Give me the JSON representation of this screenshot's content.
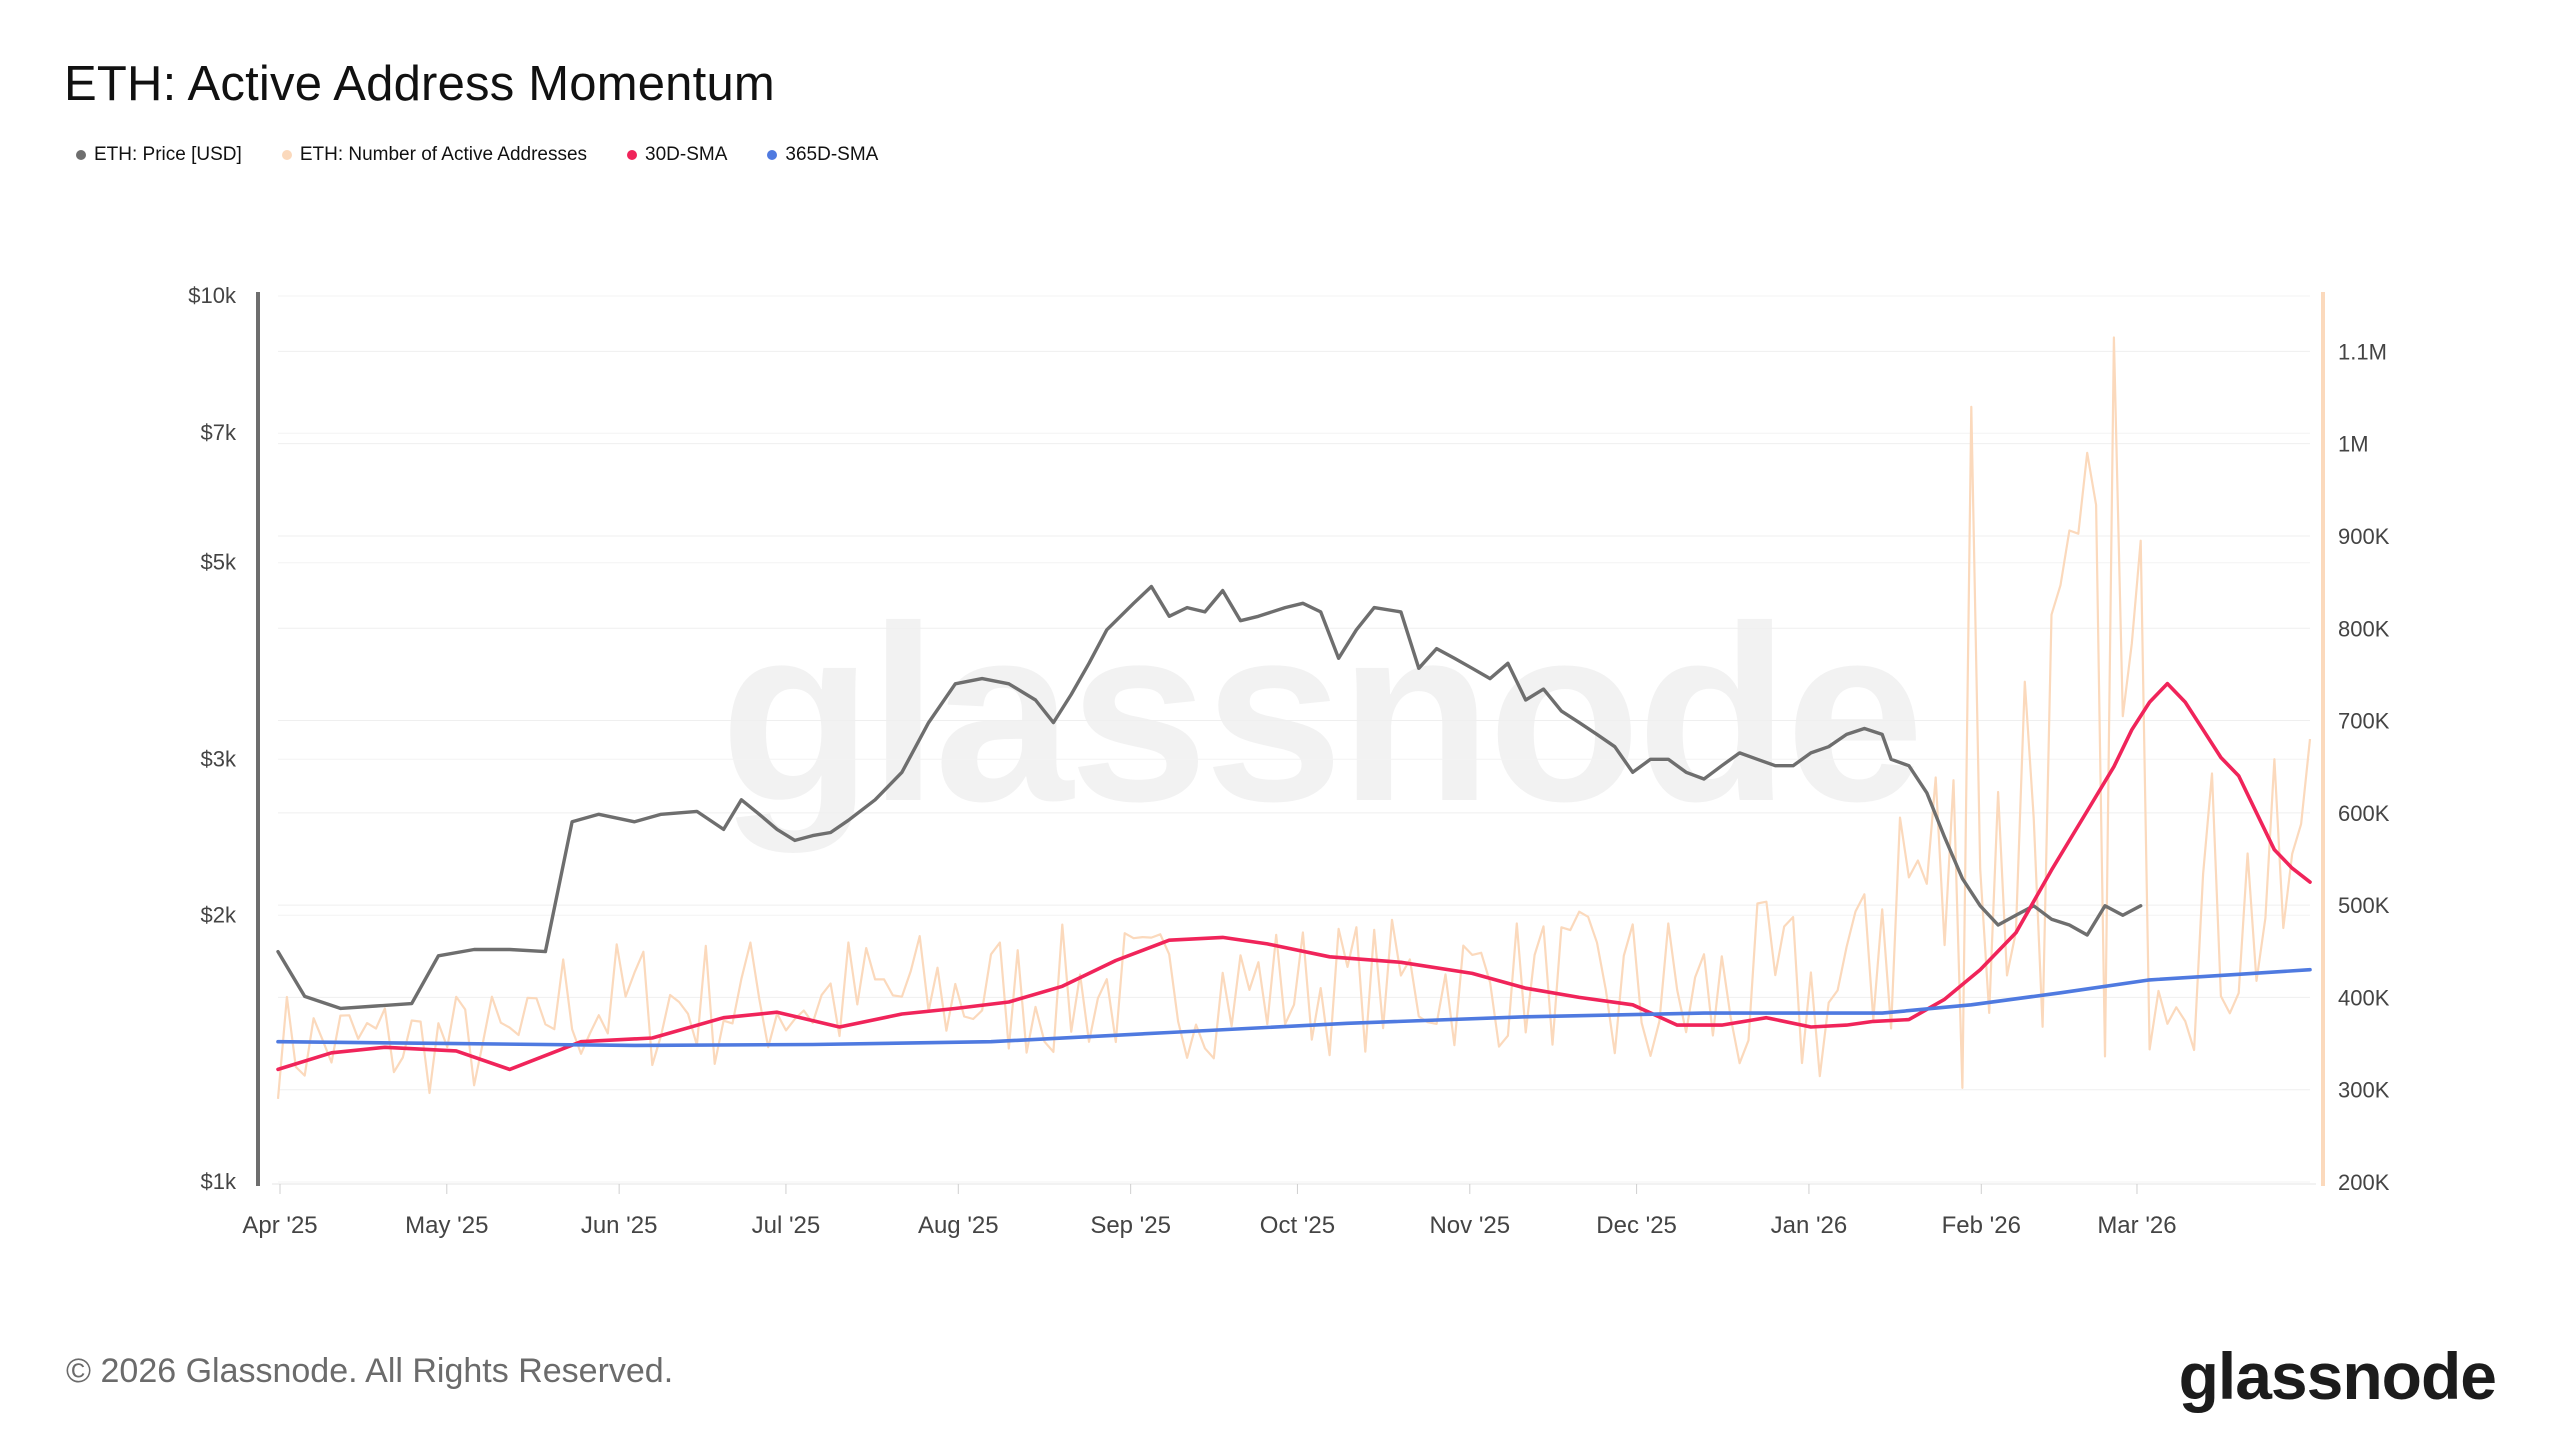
{
  "title": "ETH: Active Address Momentum",
  "watermark": "glassnode",
  "footer": "© 2026 Glassnode. All Rights Reserved.",
  "logo": "glassnode",
  "legend": [
    {
      "label": "ETH: Price [USD]",
      "color": "#6e6e6e"
    },
    {
      "label": "ETH: Number of Active Addresses",
      "color": "#fbd9bc"
    },
    {
      "label": "30D-SMA",
      "color": "#f0245a"
    },
    {
      "label": "365D-SMA",
      "color": "#4f7ae0"
    }
  ],
  "chart_data": {
    "type": "line",
    "x_labels": [
      "Apr '25",
      "May '25",
      "Jun '25",
      "Jul '25",
      "Aug '25",
      "Sep '25",
      "Oct '25",
      "Nov '25",
      "Dec '25",
      "Jan '26",
      "Feb '26",
      "Mar '26"
    ],
    "y_left": {
      "scale": "log",
      "min": 1000,
      "max": 10000,
      "ticks": [
        "$1k",
        "$2k",
        "$3k",
        "$5k",
        "$7k",
        "$10k"
      ],
      "tick_values": [
        1000,
        2000,
        3000,
        5000,
        7000,
        10000
      ]
    },
    "y_right": {
      "scale": "linear",
      "min": 200000,
      "max": 1160000,
      "ticks": [
        "200K",
        "300K",
        "400K",
        "500K",
        "600K",
        "700K",
        "800K",
        "900K",
        "1M",
        "1.1M"
      ],
      "tick_values": [
        200000,
        300000,
        400000,
        500000,
        600000,
        700000,
        800000,
        900000,
        1000000,
        1100000
      ]
    },
    "series": [
      {
        "name": "ETH: Price [USD]",
        "axis": "left",
        "color": "#6e6e6e",
        "points": [
          [
            0,
            1820
          ],
          [
            3,
            1620
          ],
          [
            7,
            1570
          ],
          [
            11,
            1580
          ],
          [
            15,
            1590
          ],
          [
            18,
            1800
          ],
          [
            22,
            1830
          ],
          [
            26,
            1830
          ],
          [
            30,
            1820
          ],
          [
            33,
            2550
          ],
          [
            36,
            2600
          ],
          [
            40,
            2550
          ],
          [
            43,
            2600
          ],
          [
            47,
            2620
          ],
          [
            50,
            2500
          ],
          [
            52,
            2700
          ],
          [
            54,
            2600
          ],
          [
            56,
            2500
          ],
          [
            58,
            2430
          ],
          [
            60,
            2460
          ],
          [
            62,
            2480
          ],
          [
            64,
            2560
          ],
          [
            67,
            2700
          ],
          [
            70,
            2900
          ],
          [
            73,
            3300
          ],
          [
            76,
            3650
          ],
          [
            79,
            3700
          ],
          [
            82,
            3650
          ],
          [
            85,
            3500
          ],
          [
            87,
            3300
          ],
          [
            89,
            3550
          ],
          [
            91,
            3850
          ],
          [
            93,
            4200
          ],
          [
            96,
            4500
          ],
          [
            98,
            4700
          ],
          [
            100,
            4350
          ],
          [
            102,
            4450
          ],
          [
            104,
            4400
          ],
          [
            106,
            4650
          ],
          [
            108,
            4300
          ],
          [
            110,
            4350
          ],
          [
            113,
            4450
          ],
          [
            115,
            4500
          ],
          [
            117,
            4400
          ],
          [
            119,
            3900
          ],
          [
            121,
            4200
          ],
          [
            123,
            4450
          ],
          [
            126,
            4400
          ],
          [
            128,
            3800
          ],
          [
            130,
            4000
          ],
          [
            132,
            3900
          ],
          [
            134,
            3800
          ],
          [
            136,
            3700
          ],
          [
            138,
            3850
          ],
          [
            140,
            3500
          ],
          [
            142,
            3600
          ],
          [
            144,
            3400
          ],
          [
            146,
            3300
          ],
          [
            148,
            3200
          ],
          [
            150,
            3100
          ],
          [
            152,
            2900
          ],
          [
            154,
            3000
          ],
          [
            156,
            3000
          ],
          [
            158,
            2900
          ],
          [
            160,
            2850
          ],
          [
            162,
            2950
          ],
          [
            164,
            3050
          ],
          [
            166,
            3000
          ],
          [
            168,
            2950
          ],
          [
            170,
            2950
          ],
          [
            172,
            3050
          ],
          [
            174,
            3100
          ],
          [
            176,
            3200
          ],
          [
            178,
            3250
          ],
          [
            180,
            3200
          ],
          [
            181,
            3000
          ],
          [
            183,
            2950
          ],
          [
            185,
            2750
          ],
          [
            187,
            2450
          ],
          [
            189,
            2200
          ],
          [
            191,
            2050
          ],
          [
            193,
            1950
          ],
          [
            195,
            2000
          ],
          [
            197,
            2050
          ],
          [
            199,
            1980
          ],
          [
            201,
            1950
          ],
          [
            203,
            1900
          ],
          [
            205,
            2050
          ],
          [
            207,
            2000
          ],
          [
            209,
            2050
          ]
        ]
      },
      {
        "name": "30D-SMA",
        "axis": "right",
        "color": "#f0245a",
        "points": [
          [
            0,
            322000
          ],
          [
            6,
            340000
          ],
          [
            12,
            346000
          ],
          [
            20,
            342000
          ],
          [
            26,
            322000
          ],
          [
            34,
            352000
          ],
          [
            42,
            356000
          ],
          [
            50,
            378000
          ],
          [
            56,
            384000
          ],
          [
            63,
            368000
          ],
          [
            70,
            382000
          ],
          [
            76,
            388000
          ],
          [
            82,
            395000
          ],
          [
            88,
            412000
          ],
          [
            94,
            440000
          ],
          [
            100,
            462000
          ],
          [
            106,
            465000
          ],
          [
            111,
            458000
          ],
          [
            118,
            444000
          ],
          [
            126,
            438000
          ],
          [
            134,
            426000
          ],
          [
            140,
            410000
          ],
          [
            146,
            400000
          ],
          [
            152,
            392000
          ],
          [
            157,
            370000
          ],
          [
            162,
            370000
          ],
          [
            167,
            378000
          ],
          [
            172,
            368000
          ],
          [
            176,
            370000
          ],
          [
            179,
            374000
          ],
          [
            183,
            376000
          ],
          [
            187,
            398000
          ],
          [
            191,
            430000
          ],
          [
            195,
            470000
          ],
          [
            199,
            538000
          ],
          [
            203,
            602000
          ],
          [
            206,
            650000
          ],
          [
            208,
            690000
          ],
          [
            210,
            720000
          ],
          [
            212,
            740000
          ],
          [
            214,
            720000
          ],
          [
            216,
            690000
          ],
          [
            218,
            660000
          ],
          [
            220,
            640000
          ],
          [
            222,
            600000
          ],
          [
            224,
            560000
          ],
          [
            226,
            540000
          ],
          [
            228,
            525000
          ]
        ]
      },
      {
        "name": "365D-SMA",
        "axis": "right",
        "color": "#4f7ae0",
        "points": [
          [
            0,
            352000
          ],
          [
            20,
            350000
          ],
          [
            40,
            348000
          ],
          [
            60,
            349000
          ],
          [
            80,
            352000
          ],
          [
            100,
            362000
          ],
          [
            120,
            372000
          ],
          [
            140,
            379000
          ],
          [
            160,
            383000
          ],
          [
            180,
            383000
          ],
          [
            190,
            392000
          ],
          [
            200,
            405000
          ],
          [
            210,
            419000
          ],
          [
            220,
            425000
          ],
          [
            228,
            430000
          ]
        ]
      }
    ],
    "active_addresses_note": "noisy daily series oscillating roughly 300K-500K until Dec '25, then 400K-1.1M through Feb '26, peak ~1.12M in Feb '26"
  }
}
